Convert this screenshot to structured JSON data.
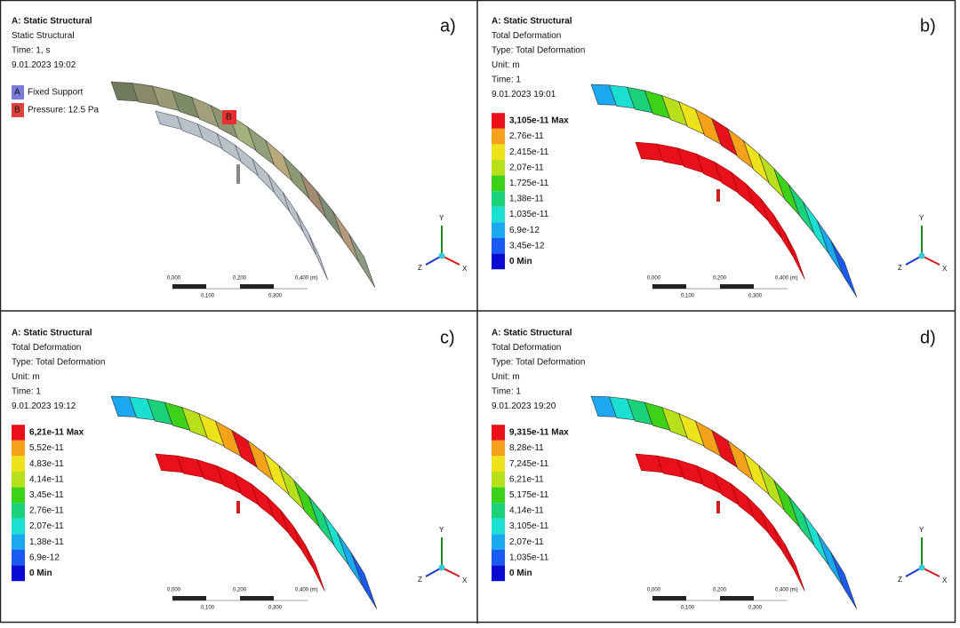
{
  "panels": [
    {
      "label": "a)",
      "header": [
        "A: Static Structural",
        "Static Structural",
        "Time: 1, s",
        "9.01.2023 19:02"
      ],
      "supports": [
        {
          "key": "A",
          "text": "Fixed Support"
        },
        {
          "key": "B",
          "text": "Pressure: 12.5 Pa"
        }
      ],
      "scale": {
        "top": [
          "0,000",
          "0,200",
          "0,400 (m)"
        ],
        "bottom": [
          "0,100",
          "0,300"
        ]
      },
      "triad": [
        "Y",
        "Z",
        "X"
      ]
    },
    {
      "label": "b)",
      "header": [
        "A: Static Structural",
        "Total Deformation",
        "Type: Total Deformation",
        "Unit: m",
        "Time: 1",
        "9.01.2023 19:01"
      ],
      "legend": [
        "3,105e-11 Max",
        "2,76e-11",
        "2,415e-11",
        "2,07e-11",
        "1,725e-11",
        "1,38e-11",
        "1,035e-11",
        "6,9e-12",
        "3,45e-12",
        "0 Min"
      ],
      "scale": {
        "top": [
          "0,000",
          "0,200",
          "0,400 (m)"
        ],
        "bottom": [
          "0,100",
          "0,300"
        ]
      },
      "triad": [
        "Y",
        "Z",
        "X"
      ]
    },
    {
      "label": "c)",
      "header": [
        "A: Static Structural",
        "Total Deformation",
        "Type: Total Deformation",
        "Unit: m",
        "Time: 1",
        "9.01.2023 19:12"
      ],
      "legend": [
        "6,21e-11 Max",
        "5,52e-11",
        "4,83e-11",
        "4,14e-11",
        "3,45e-11",
        "2,76e-11",
        "2,07e-11",
        "1,38e-11",
        "6,9e-12",
        "0 Min"
      ],
      "scale": {
        "top": [
          "0,000",
          "0,200",
          "0,400 (m)"
        ],
        "bottom": [
          "0,100",
          "0,300"
        ]
      },
      "triad": [
        "Y",
        "Z",
        "X"
      ]
    },
    {
      "label": "d)",
      "header": [
        "A: Static Structural",
        "Total Deformation",
        "Type: Total Deformation",
        "Unit: m",
        "Time: 1",
        "9.01.2023 19:20"
      ],
      "legend": [
        "9,315e-11 Max",
        "8,28e-11",
        "7,245e-11",
        "6,21e-11",
        "5,175e-11",
        "4,14e-11",
        "3,105e-11",
        "2,07e-11",
        "1,035e-11",
        "0 Min"
      ],
      "scale": {
        "top": [
          "0,000",
          "0,200",
          "0,400 (m)"
        ],
        "bottom": [
          "0,100",
          "0,300"
        ]
      },
      "triad": [
        "Y",
        "Z",
        "X"
      ]
    }
  ]
}
